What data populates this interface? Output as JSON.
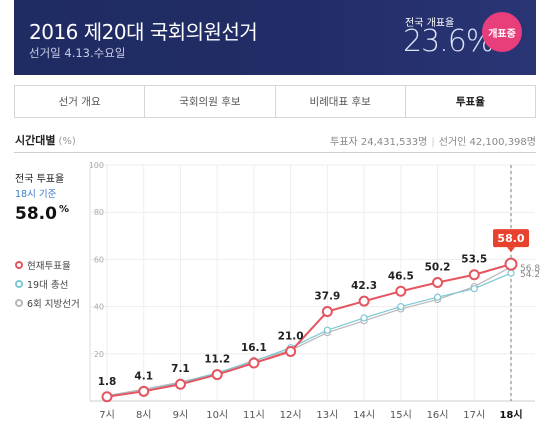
{
  "header": {
    "title": "2016 제20대 국회의원선거",
    "date": "선거일  4.13.수요일",
    "rate_label": "전국 개표율",
    "rate_value": "23.6%",
    "badge": "개표중"
  },
  "tabs": [
    {
      "label": "선거 개요",
      "active": false
    },
    {
      "label": "국회의원 후보",
      "active": false
    },
    {
      "label": "비례대표 후보",
      "active": false
    },
    {
      "label": "투표율",
      "active": true
    }
  ],
  "section": {
    "title": "시간대별",
    "unit": "(%)",
    "voters": "투표자 24,431,533명",
    "electorate": "선거인 42,100,398명"
  },
  "summary": {
    "label": "전국 투표율",
    "basis": "18시 기준",
    "value": "58.0",
    "unit": "%"
  },
  "legend": [
    {
      "label": "현재투표율",
      "color": "#e4555f"
    },
    {
      "label": "19대 총선",
      "color": "#7cc7d6"
    },
    {
      "label": "6회 지방선거",
      "color": "#b8b8b8"
    }
  ],
  "chart_data": {
    "type": "line",
    "categories": [
      "7시",
      "8시",
      "9시",
      "10시",
      "11시",
      "12시",
      "13시",
      "14시",
      "15시",
      "16시",
      "17시",
      "18시"
    ],
    "ylim": [
      0,
      100
    ],
    "yticks": [
      0,
      20,
      40,
      60,
      80,
      100
    ],
    "series": [
      {
        "name": "현재투표율",
        "color": "#e4555f",
        "values": [
          1.8,
          4.1,
          7.1,
          11.2,
          16.1,
          21.0,
          37.9,
          42.3,
          46.5,
          50.2,
          53.5,
          58.0
        ],
        "labels": [
          "1.8",
          "4.1",
          "7.1",
          "11.2",
          "16.1",
          "21.0",
          "37.9",
          "42.3",
          "46.5",
          "50.2",
          "53.5",
          "58.0"
        ]
      },
      {
        "name": "19대 총선",
        "color": "#7cc7d6",
        "values": [
          2.0,
          4.4,
          7.6,
          12.0,
          16.8,
          22.6,
          30.0,
          35.2,
          40.0,
          44.0,
          47.6,
          54.2
        ],
        "end_label": "54.2"
      },
      {
        "name": "6회 지방선거",
        "color": "#b8b8b8",
        "values": [
          2.3,
          5.0,
          8.0,
          11.8,
          17.2,
          21.5,
          29.0,
          34.0,
          39.0,
          43.0,
          48.5,
          56.8
        ],
        "end_label": "56.8"
      }
    ],
    "highlight": {
      "category": "18시",
      "label": "58.0"
    },
    "grid": true
  }
}
